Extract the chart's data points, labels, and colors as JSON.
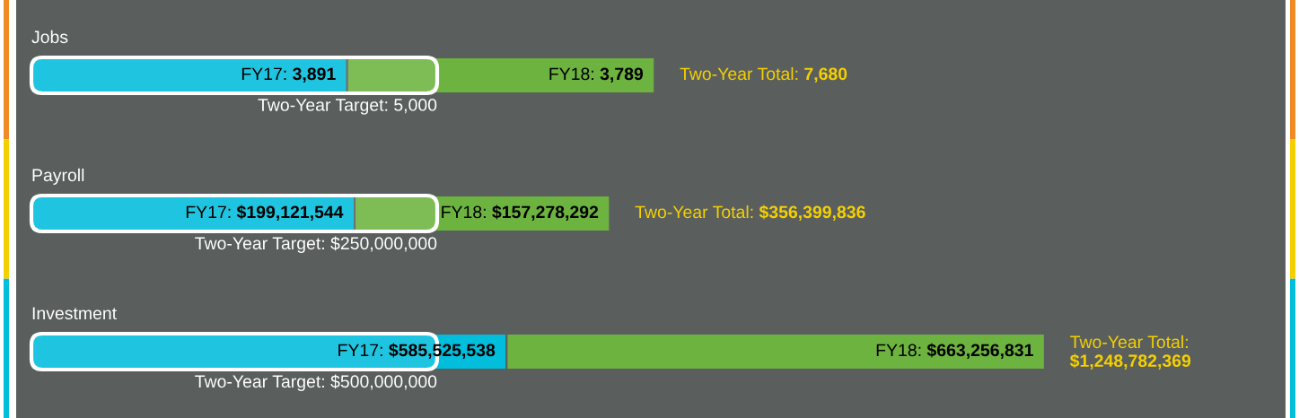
{
  "chart_data": [
    {
      "type": "bar",
      "title": "Jobs",
      "orientation": "horizontal",
      "stacked": true,
      "categories": [
        null
      ],
      "series": [
        {
          "name": "FY17:",
          "color": "#00bedc",
          "values": [
            3891
          ],
          "value_labels": [
            "3,891"
          ]
        },
        {
          "name": "FY18:",
          "color": "#6db33f",
          "values": [
            3789
          ],
          "value_labels": [
            "3,789"
          ]
        }
      ],
      "bands": [
        {
          "axis": "x",
          "from": 0,
          "to": 5000,
          "label": "Two-Year Target: 5,000",
          "color": "#ffffff"
        }
      ],
      "totals": [
        "Two-Year Total: 7,680"
      ]
    },
    {
      "type": "bar",
      "title": "Payroll",
      "orientation": "horizontal",
      "stacked": true,
      "categories": [
        null
      ],
      "series": [
        {
          "name": "FY17:",
          "color": "#00bedc",
          "values": [
            199121544
          ],
          "value_labels": [
            "$199,121,544"
          ]
        },
        {
          "name": "FY18:",
          "color": "#6db33f",
          "values": [
            157278292
          ],
          "value_labels": [
            "$157,278,292"
          ]
        }
      ],
      "bands": [
        {
          "axis": "x",
          "from": 0,
          "to": 250000000,
          "label": "Two-Year Target: $250,000,000",
          "color": "#ffffff"
        }
      ],
      "totals": [
        "Two-Year Total: $356,399,836"
      ]
    },
    {
      "type": "bar",
      "title": "Investment",
      "orientation": "horizontal",
      "stacked": true,
      "categories": [
        null
      ],
      "series": [
        {
          "name": "FY17:",
          "color": "#00bedc",
          "values": [
            585525538
          ],
          "value_labels": [
            "$585,525,538"
          ]
        },
        {
          "name": "FY18:",
          "color": "#6db33f",
          "values": [
            663256831
          ],
          "value_labels": [
            "$663,256,831"
          ]
        }
      ],
      "bands": [
        {
          "axis": "x",
          "from": 0,
          "to": 500000000,
          "label": "Two-Year Target: $500,000,000",
          "color": "#ffffff"
        }
      ],
      "totals": [
        "Two-Year Total: $1,248,782,369"
      ]
    }
  ]
}
